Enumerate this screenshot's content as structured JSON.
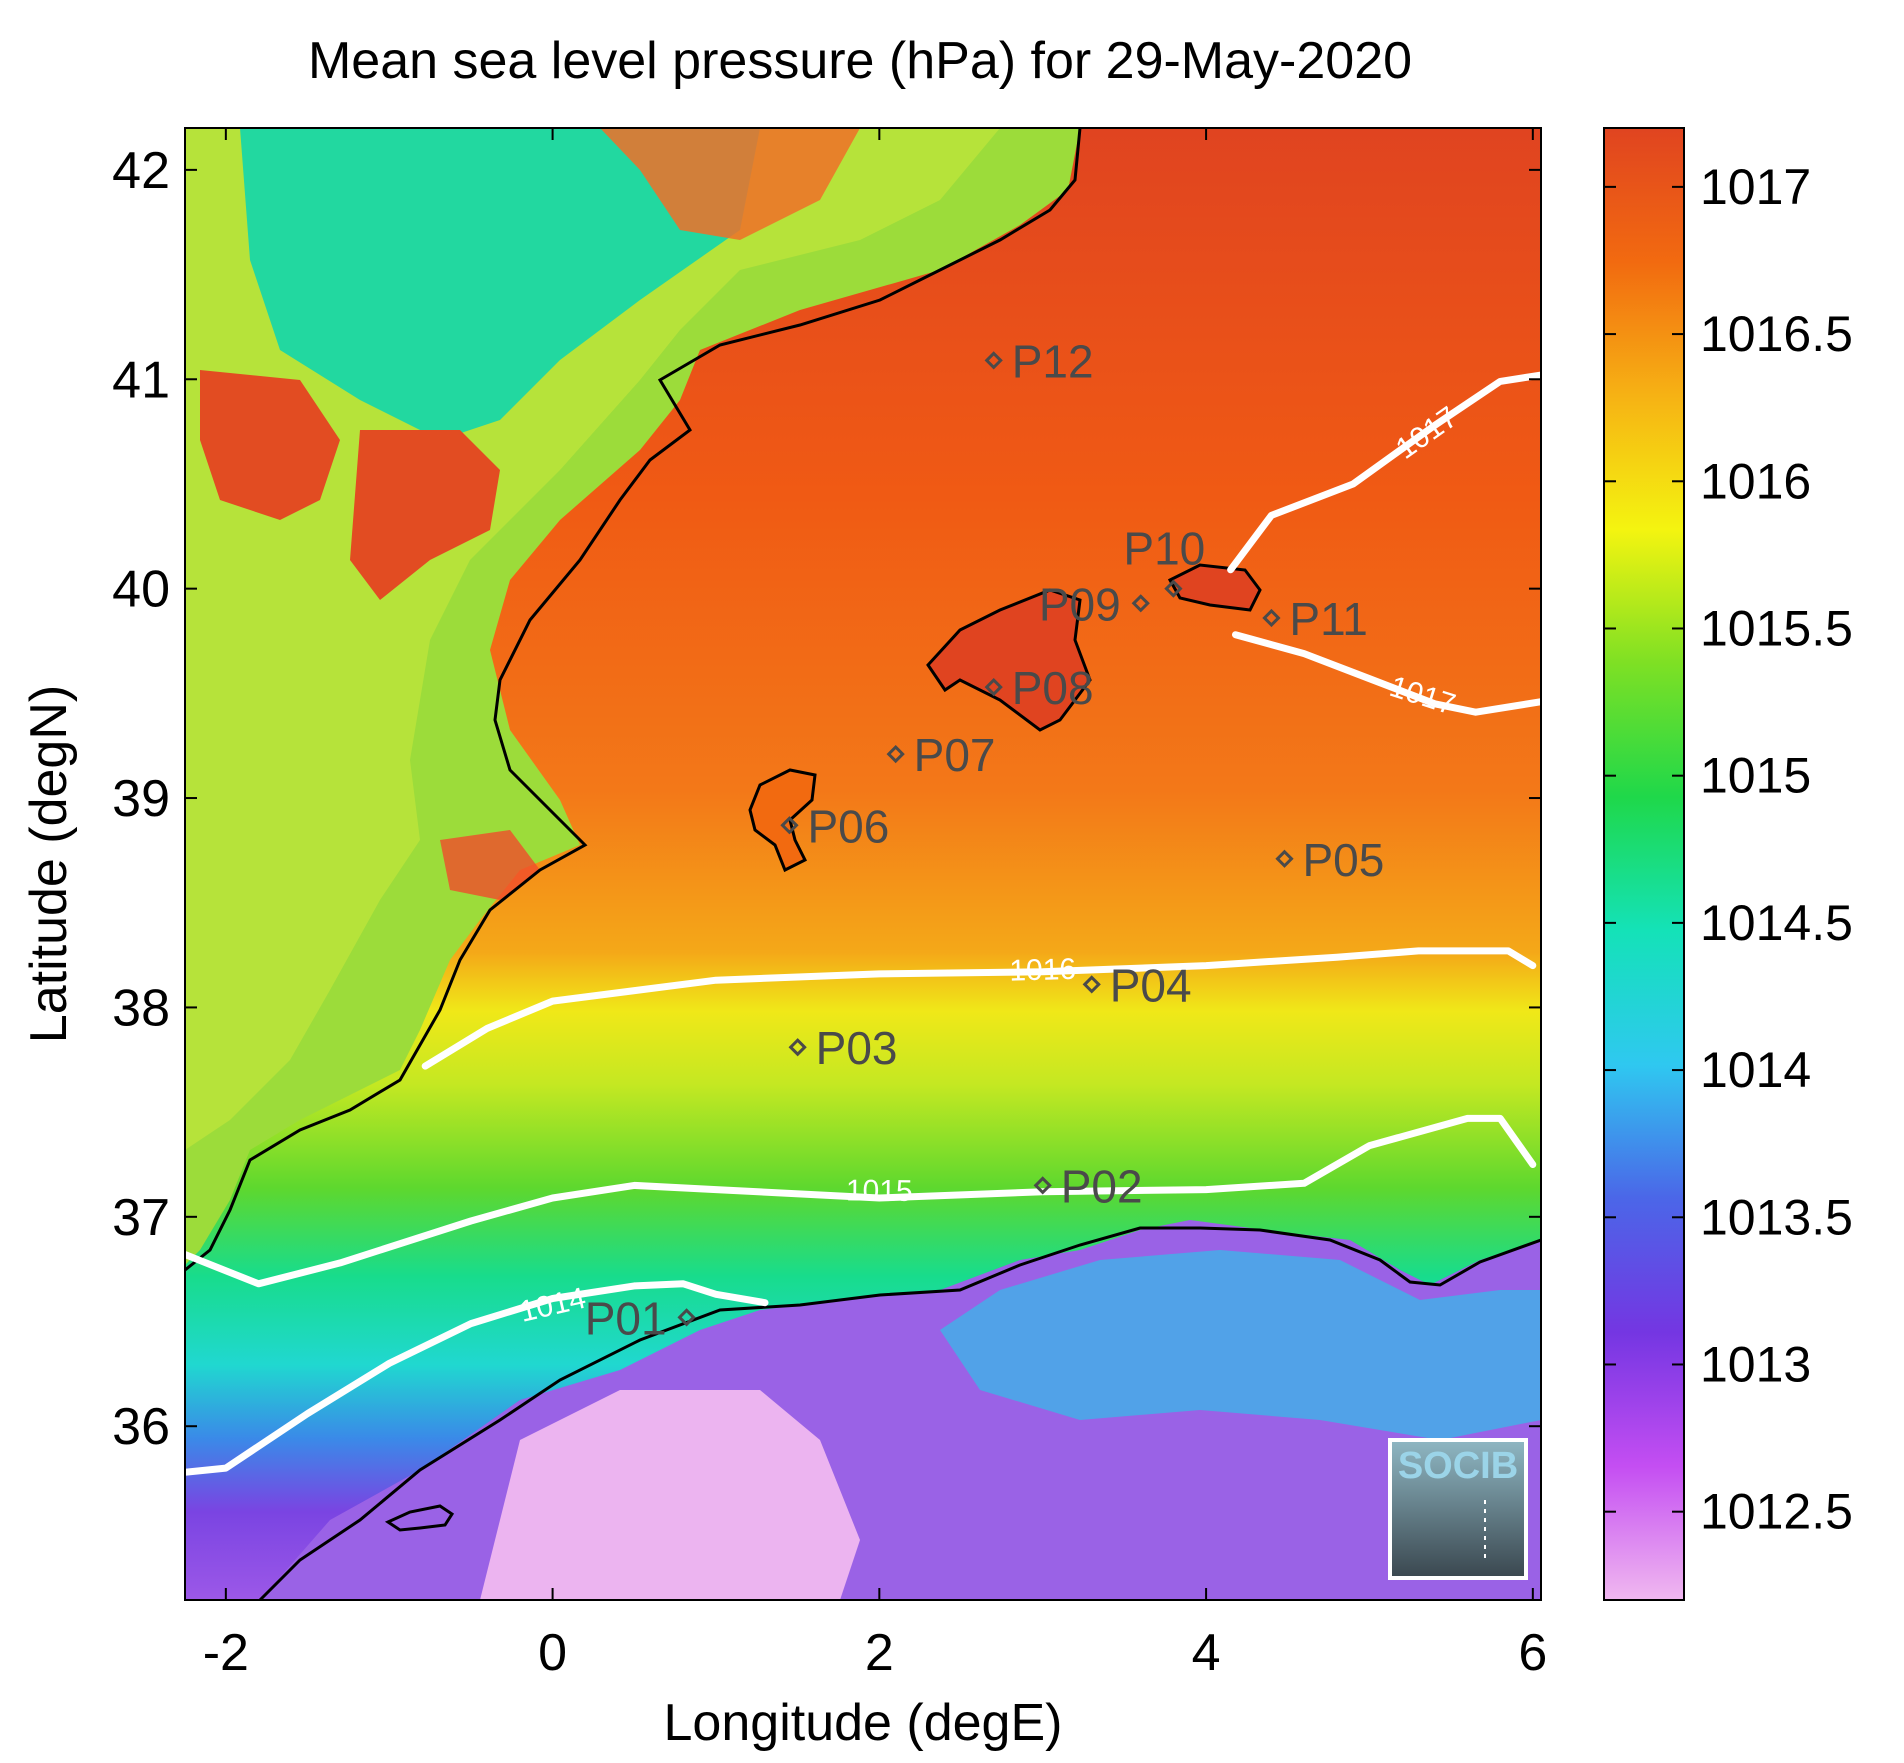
{
  "chart_data": {
    "type": "heatmap",
    "title": "Mean sea level pressure (hPa) for 29-May-2020",
    "xlabel": "Longitude (degE)",
    "ylabel": "Latitude (degN)",
    "xlim": [
      -2.25,
      6.05
    ],
    "ylim": [
      35.17,
      42.2
    ],
    "x_ticks": [
      -2,
      0,
      2,
      4,
      6
    ],
    "y_ticks": [
      36,
      37,
      38,
      39,
      40,
      41,
      42
    ],
    "colorbar": {
      "range": [
        1012.2,
        1017.2
      ],
      "ticks": [
        "1012.5",
        "1013",
        "1013.5",
        "1014",
        "1014.5",
        "1015",
        "1015.5",
        "1016",
        "1016.5",
        "1017"
      ],
      "tick_values": [
        1012.5,
        1013,
        1013.5,
        1014,
        1014.5,
        1015,
        1015.5,
        1016,
        1016.5,
        1017
      ],
      "colors": [
        "#f0b8f0",
        "#c44ef2",
        "#7436e2",
        "#4b66e8",
        "#2fc8f0",
        "#14e2b8",
        "#1fd84a",
        "#7ee024",
        "#f4f410",
        "#f6b214",
        "#f26a10",
        "#e04420"
      ]
    },
    "contours": [
      {
        "label": "1014",
        "points": [
          [
            -2.25,
            35.78
          ],
          [
            -2.0,
            35.8
          ],
          [
            -1.5,
            36.06
          ],
          [
            -1.0,
            36.3
          ],
          [
            -0.5,
            36.49
          ],
          [
            0.0,
            36.61
          ],
          [
            0.5,
            36.67
          ],
          [
            0.8,
            36.68
          ],
          [
            1.0,
            36.63
          ],
          [
            1.3,
            36.59
          ]
        ]
      },
      {
        "label": "1015",
        "points": [
          [
            -2.25,
            36.82
          ],
          [
            -1.8,
            36.68
          ],
          [
            -1.3,
            36.78
          ],
          [
            -0.5,
            36.98
          ],
          [
            0.0,
            37.09
          ],
          [
            0.5,
            37.15
          ],
          [
            1.0,
            37.13
          ],
          [
            2.0,
            37.09
          ],
          [
            3.0,
            37.12
          ],
          [
            4.0,
            37.13
          ],
          [
            4.6,
            37.16
          ],
          [
            5.0,
            37.34
          ],
          [
            5.6,
            37.47
          ],
          [
            5.8,
            37.47
          ],
          [
            6.0,
            37.25
          ]
        ]
      },
      {
        "label": "1016",
        "points": [
          [
            -0.78,
            37.72
          ],
          [
            -0.4,
            37.9
          ],
          [
            0.0,
            38.03
          ],
          [
            1.0,
            38.13
          ],
          [
            2.0,
            38.16
          ],
          [
            3.0,
            38.17
          ],
          [
            4.0,
            38.2
          ],
          [
            4.8,
            38.24
          ],
          [
            5.3,
            38.27
          ],
          [
            5.85,
            38.27
          ],
          [
            6.0,
            38.2
          ]
        ]
      },
      {
        "label": "1017",
        "points": [
          [
            4.15,
            40.09
          ],
          [
            4.4,
            40.35
          ],
          [
            4.9,
            40.5
          ],
          [
            5.4,
            40.78
          ],
          [
            5.8,
            40.99
          ],
          [
            6.05,
            41.02
          ]
        ]
      },
      {
        "label": "1017",
        "points": [
          [
            4.18,
            39.78
          ],
          [
            4.6,
            39.69
          ],
          [
            5.0,
            39.57
          ],
          [
            5.4,
            39.45
          ],
          [
            5.65,
            39.41
          ],
          [
            6.05,
            39.46
          ]
        ]
      }
    ],
    "stations": [
      {
        "name": "P01",
        "lon": 0.82,
        "lat": 36.52
      },
      {
        "name": "P02",
        "lon": 3.0,
        "lat": 37.15
      },
      {
        "name": "P03",
        "lon": 1.5,
        "lat": 37.81
      },
      {
        "name": "P04",
        "lon": 3.3,
        "lat": 38.11
      },
      {
        "name": "P05",
        "lon": 4.48,
        "lat": 38.71
      },
      {
        "name": "P06",
        "lon": 1.45,
        "lat": 38.87
      },
      {
        "name": "P07",
        "lon": 2.1,
        "lat": 39.21
      },
      {
        "name": "P08",
        "lon": 2.7,
        "lat": 39.53
      },
      {
        "name": "P09",
        "lon": 3.6,
        "lat": 39.93
      },
      {
        "name": "P10",
        "lon": 3.8,
        "lat": 40.0
      },
      {
        "name": "P11",
        "lon": 4.4,
        "lat": 39.86
      },
      {
        "name": "P12",
        "lon": 2.7,
        "lat": 41.09
      }
    ]
  },
  "logo": {
    "text": "SOCIB",
    "color": "#9bd4e8"
  }
}
